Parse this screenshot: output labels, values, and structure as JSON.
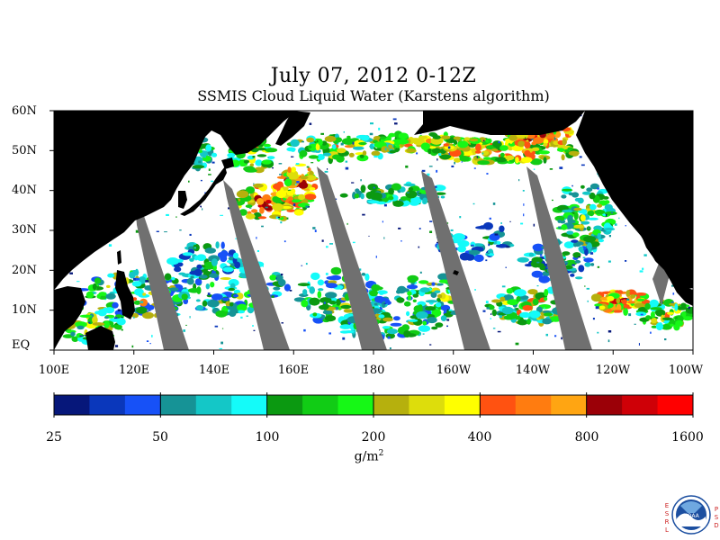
{
  "title": "July 07, 2012 0-12Z",
  "subtitle": "SSMIS Cloud Liquid Water (Karstens algorithm)",
  "map": {
    "lat_labels": [
      "60N",
      "50N",
      "40N",
      "30N",
      "20N",
      "10N",
      "EQ"
    ],
    "lon_labels": [
      "100E",
      "120E",
      "140E",
      "160E",
      "180",
      "160W",
      "140W",
      "120W",
      "100W"
    ],
    "lat_range": [
      0,
      60
    ],
    "lon_range_east": [
      100,
      260
    ],
    "land_color": "#000000",
    "ocean_clear_color": "#ffffff",
    "no_data_color": "#707070"
  },
  "colorbar": {
    "colors": [
      "#06177a",
      "#0a37bb",
      "#1751f7",
      "#169396",
      "#14c7c7",
      "#14fbf9",
      "#0b9911",
      "#11cc15",
      "#16f816",
      "#b6b00d",
      "#dddd0c",
      "#ffff00",
      "#ff5211",
      "#ff7c10",
      "#ffa512",
      "#9b0007",
      "#cf0007",
      "#ff0000"
    ],
    "labels": [
      "25",
      "50",
      "100",
      "200",
      "400",
      "800",
      "1600"
    ],
    "unit_base": "g/m",
    "unit_exp": "2"
  },
  "logo": {
    "left_letters": [
      "E",
      "S",
      "R",
      "L"
    ],
    "right_letters": [
      "P",
      "S",
      "D"
    ],
    "center": "NOAA"
  }
}
